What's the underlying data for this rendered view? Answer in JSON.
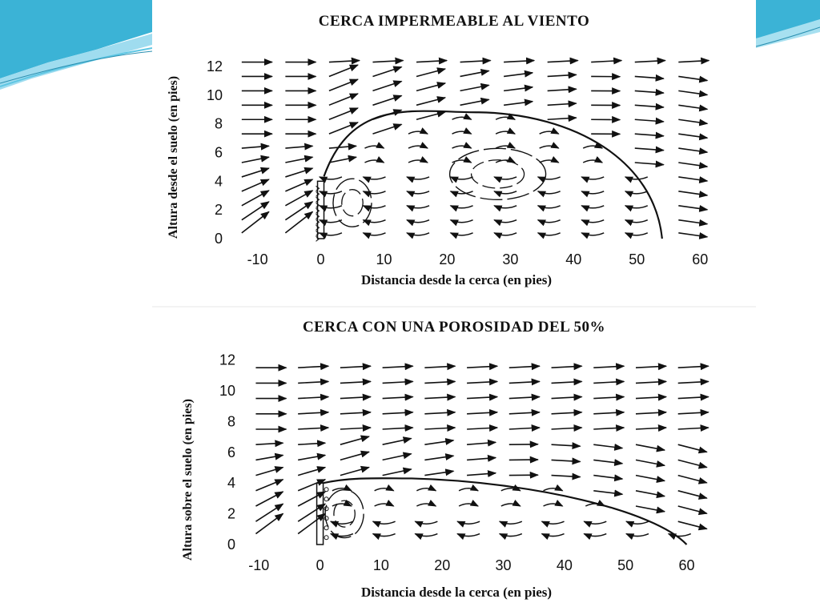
{
  "theme": {
    "accent": "#3bb3d6",
    "accent_light": "#8fd6ea",
    "line": "#111111"
  },
  "decor": [
    "wave-decoration-left",
    "wave-decoration-right"
  ],
  "chart_data": [
    {
      "type": "diagram",
      "title": "CERCA IMPERMEABLE AL VIENTO",
      "xlabel": "Distancia desde la cerca (en pies)",
      "ylabel": "Altura desde el suelo (en pies)",
      "xticks": [
        "-10",
        "0",
        "10",
        "20",
        "30",
        "40",
        "50",
        "60"
      ],
      "yticks": [
        "0",
        "2",
        "4",
        "6",
        "8",
        "10",
        "12"
      ],
      "xlim": [
        -14,
        62
      ],
      "ylim": [
        0,
        13
      ],
      "fence": {
        "x": 0,
        "height": 4,
        "porosity": 0
      },
      "separation_boundary": {
        "x_start": 0,
        "peak_x": 25,
        "peak_y": 8.8,
        "x_end": 54
      },
      "vortices": [
        {
          "x": 5,
          "y": 2.5
        },
        {
          "x": 28,
          "y": 4.5
        }
      ]
    },
    {
      "type": "diagram",
      "title": "CERCA CON UNA POROSIDAD DEL 50%",
      "xlabel": "Distancia desde la cerca (en pies)",
      "ylabel": "Altura sobre el suelo (en pies)",
      "xticks": [
        "-10",
        "0",
        "10",
        "20",
        "30",
        "40",
        "50",
        "60"
      ],
      "yticks": [
        "0",
        "2",
        "4",
        "6",
        "8",
        "10",
        "12"
      ],
      "xlim": [
        -12,
        64
      ],
      "ylim": [
        0,
        12.5
      ],
      "fence": {
        "x": 0,
        "height": 4,
        "porosity": 0.5
      },
      "separation_boundary": {
        "x_start": 0,
        "peak_x": 15,
        "peak_y": 4.3,
        "x_end": 60
      },
      "vortices": [
        {
          "x": 4,
          "y": 2
        }
      ]
    }
  ]
}
